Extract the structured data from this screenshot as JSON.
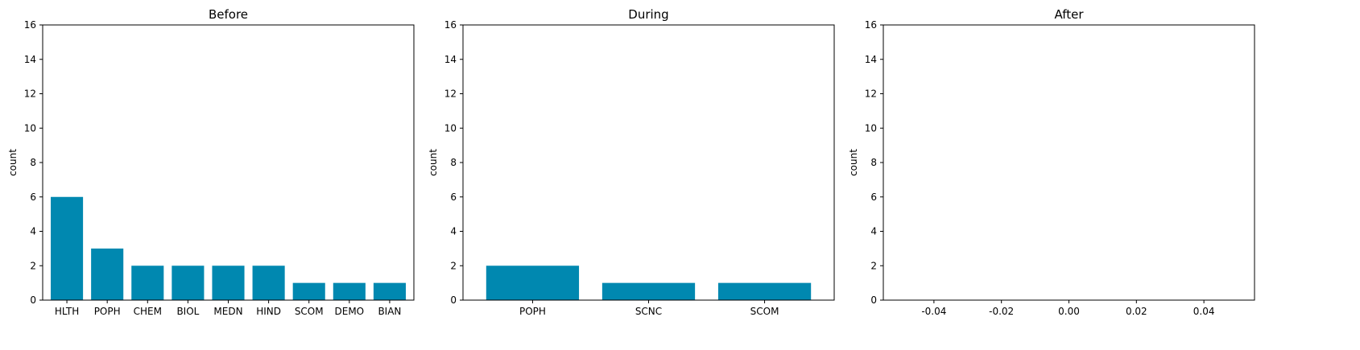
{
  "chart_data": [
    {
      "type": "bar",
      "title": "Before",
      "xlabel": "",
      "ylabel": "count",
      "ylim": [
        0,
        16
      ],
      "yticks": [
        0,
        2,
        4,
        6,
        8,
        10,
        12,
        14,
        16
      ],
      "categories": [
        "HLTH",
        "POPH",
        "CHEM",
        "BIOL",
        "MEDN",
        "HIND",
        "SCOM",
        "DEMO",
        "BIAN"
      ],
      "values": [
        6,
        3,
        2,
        2,
        2,
        2,
        1,
        1,
        1
      ],
      "color": "#0088b0",
      "grid": false
    },
    {
      "type": "bar",
      "title": "During",
      "xlabel": "",
      "ylabel": "count",
      "ylim": [
        0,
        16
      ],
      "yticks": [
        0,
        2,
        4,
        6,
        8,
        10,
        12,
        14,
        16
      ],
      "categories": [
        "POPH",
        "SCNC",
        "SCOM"
      ],
      "values": [
        2,
        1,
        1
      ],
      "color": "#0088b0",
      "grid": false
    },
    {
      "type": "bar",
      "title": "After",
      "xlabel": "",
      "ylabel": "count",
      "ylim": [
        0,
        16
      ],
      "yticks": [
        0,
        2,
        4,
        6,
        8,
        10,
        12,
        14,
        16
      ],
      "categories": [],
      "values": [],
      "xlim": [
        -0.055,
        0.055
      ],
      "xticks": [
        "-0.04",
        "-0.02",
        "0.00",
        "0.02",
        "0.04"
      ],
      "xtick_values": [
        -0.04,
        -0.02,
        0.0,
        0.02,
        0.04
      ],
      "color": "#0088b0",
      "grid": false
    }
  ]
}
